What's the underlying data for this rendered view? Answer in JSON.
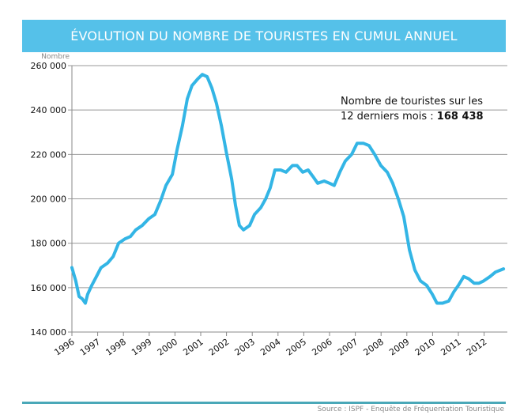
{
  "chart_data": {
    "type": "line",
    "title": "ÉVOLUTION DU NOMBRE DE TOURISTES EN CUMUL ANNUEL",
    "ylabel": "Nombre",
    "xlabel": "",
    "ylim": [
      140000,
      260000
    ],
    "yticks": [
      140000,
      160000,
      180000,
      200000,
      220000,
      240000,
      260000
    ],
    "ytick_labels": [
      "140 000",
      "160 000",
      "180 000",
      "200 000",
      "220 000",
      "240 000",
      "260 000"
    ],
    "xlim": [
      1996,
      2013
    ],
    "xtick_labels": [
      "1996",
      "1997",
      "1998",
      "1999",
      "2000",
      "2001",
      "2002",
      "2003",
      "2004",
      "2005",
      "2006",
      "2007",
      "2008",
      "2009",
      "2010",
      "2011",
      "2012"
    ],
    "grid": "horizontal",
    "line_color": "#33b5e5",
    "series": [
      {
        "x": [
          1996.0,
          1996.15,
          1996.28,
          1996.4,
          1996.52,
          1996.61,
          1996.77,
          1996.95,
          1997.13,
          1997.38,
          1997.6,
          1997.81,
          1998.06,
          1998.27,
          1998.48,
          1998.73,
          1998.98,
          1999.22,
          1999.44,
          1999.65,
          1999.9,
          2000.08,
          2000.29,
          2000.48,
          2000.66,
          2000.88,
          2001.06,
          2001.25,
          2001.43,
          2001.61,
          2001.8,
          2002.01,
          2002.2,
          2002.35,
          2002.5,
          2002.66,
          2002.9,
          2003.09,
          2003.33,
          2003.52,
          2003.7,
          2003.88,
          2004.1,
          2004.31,
          2004.56,
          2004.74,
          2004.96,
          2005.17,
          2005.36,
          2005.54,
          2005.79,
          2006.0,
          2006.18,
          2006.4,
          2006.61,
          2006.86,
          2007.07,
          2007.32,
          2007.53,
          2007.75,
          2007.99,
          2008.24,
          2008.45,
          2008.67,
          2008.88,
          2009.1,
          2009.31,
          2009.53,
          2009.77,
          2009.99,
          2010.17,
          2010.39,
          2010.63,
          2010.82,
          2011.0,
          2011.21,
          2011.4,
          2011.61,
          2011.8,
          2011.98,
          2012.23,
          2012.44,
          2012.75
        ],
        "values": [
          169000,
          163000,
          156000,
          155000,
          153000,
          157000,
          161000,
          165000,
          169000,
          171000,
          174000,
          180000,
          182000,
          183000,
          186000,
          188000,
          191000,
          193000,
          199000,
          206000,
          211000,
          222000,
          233000,
          245000,
          251000,
          254000,
          256000,
          255000,
          250000,
          243000,
          233000,
          220000,
          209000,
          197000,
          188000,
          186000,
          188000,
          193000,
          196000,
          200000,
          205000,
          213000,
          213000,
          212000,
          215000,
          215000,
          212000,
          213000,
          210000,
          207000,
          208000,
          207000,
          206000,
          212000,
          217000,
          220000,
          225000,
          225000,
          224000,
          220000,
          215000,
          212000,
          207000,
          200000,
          192000,
          177000,
          168000,
          163000,
          161000,
          157000,
          153000,
          153000,
          154000,
          158000,
          161000,
          165000,
          164000,
          162000,
          162000,
          163000,
          165000,
          167000,
          168438
        ]
      }
    ],
    "annotation": {
      "text": "Nombre de touristes sur les",
      "text2": "12 derniers mois : ",
      "value": "168 438"
    },
    "source": "Source : ISPF - Enquête de Fréquentation Touristique"
  }
}
